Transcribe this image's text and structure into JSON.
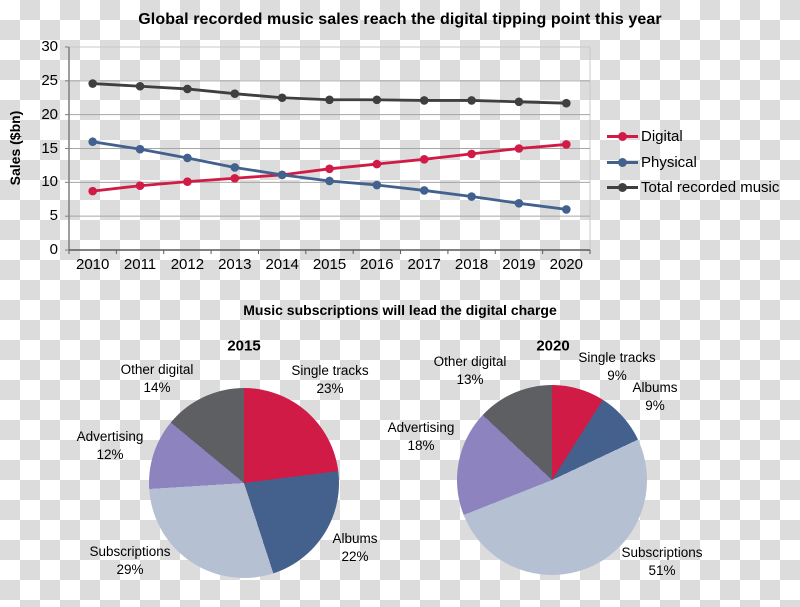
{
  "page": {
    "pie_section_title": "Music subscriptions will lead the digital charge"
  },
  "chart_data": [
    {
      "type": "line",
      "title": "Global recorded music sales reach the digital tipping point this year",
      "xlabel": "",
      "ylabel": "Sales ($bn)",
      "x": [
        "2010",
        "2011",
        "2012",
        "2013",
        "2014",
        "2015",
        "2016",
        "2017",
        "2018",
        "2019",
        "2020"
      ],
      "ylim": [
        0,
        30
      ],
      "ytick_step": 5,
      "grid": true,
      "legend_position": "right",
      "series": [
        {
          "name": "Digital",
          "color": "#cf1b46",
          "values": [
            8.7,
            9.5,
            10.1,
            10.6,
            11.1,
            12.0,
            12.7,
            13.4,
            14.2,
            15.0,
            15.6
          ]
        },
        {
          "name": "Physical",
          "color": "#42618e",
          "values": [
            16.0,
            14.9,
            13.6,
            12.2,
            11.1,
            10.2,
            9.6,
            8.8,
            7.9,
            6.9,
            6.0
          ]
        },
        {
          "name": "Total recorded music",
          "color": "#3f3f41",
          "values": [
            24.6,
            24.2,
            23.8,
            23.1,
            22.5,
            22.2,
            22.2,
            22.1,
            22.1,
            21.9,
            21.7
          ]
        }
      ]
    },
    {
      "type": "pie",
      "title": "2015",
      "labels": [
        "Single tracks",
        "Albums",
        "Subscriptions",
        "Advertising",
        "Other digital"
      ],
      "keys": [
        "single-tracks",
        "albums",
        "subscriptions",
        "advertising",
        "other-digital"
      ],
      "values": [
        23,
        22,
        29,
        12,
        14
      ],
      "colors": [
        "#cf1b46",
        "#44608c",
        "#b6c0d3",
        "#8c83bf",
        "#5d5f63"
      ]
    },
    {
      "type": "pie",
      "title": "2020",
      "labels": [
        "Single tracks",
        "Albums",
        "Subscriptions",
        "Advertising",
        "Other digital"
      ],
      "keys": [
        "single-tracks",
        "albums",
        "subscriptions",
        "advertising",
        "other-digital"
      ],
      "values": [
        9,
        9,
        51,
        18,
        13
      ],
      "colors": [
        "#cf1b46",
        "#44608c",
        "#b6c0d3",
        "#8c83bf",
        "#5d5f63"
      ]
    }
  ],
  "style": {
    "grid_color": "#a6a6a6",
    "border_color": "#c9c9c9",
    "axis_color": "#7f7f7f",
    "baseline_color": "#595959",
    "checker_gray": "#dcdcdc"
  }
}
